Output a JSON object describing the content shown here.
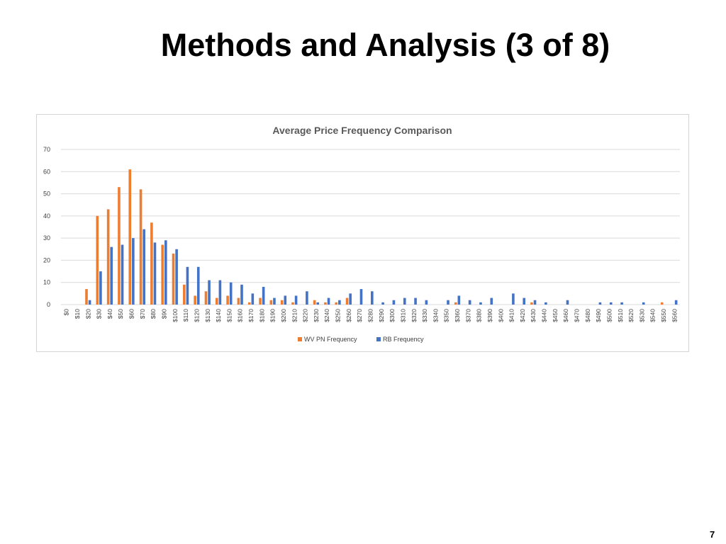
{
  "slide": {
    "title": "Methods and Analysis (3 of 8)",
    "page_number": "7"
  },
  "chart_data": {
    "type": "bar",
    "title": "Average Price Frequency Comparison",
    "xlabel": "",
    "ylabel": "",
    "ylim": [
      0,
      70
    ],
    "yticks": [
      0,
      10,
      20,
      30,
      40,
      50,
      60,
      70
    ],
    "grid": true,
    "legend_position": "bottom",
    "categories": [
      "$0",
      "$10",
      "$20",
      "$30",
      "$40",
      "$50",
      "$60",
      "$70",
      "$80",
      "$90",
      "$100",
      "$110",
      "$120",
      "$130",
      "$140",
      "$150",
      "$160",
      "$170",
      "$180",
      "$190",
      "$200",
      "$210",
      "$220",
      "$230",
      "$240",
      "$250",
      "$260",
      "$270",
      "$280",
      "$290",
      "$300",
      "$310",
      "$320",
      "$330",
      "$340",
      "$350",
      "$360",
      "$370",
      "$380",
      "$390",
      "$400",
      "$410",
      "$420",
      "$430",
      "$440",
      "$450",
      "$460",
      "$470",
      "$480",
      "$490",
      "$500",
      "$510",
      "$520",
      "$530",
      "$540",
      "$550",
      "$560"
    ],
    "series": [
      {
        "name": "WV PN Frequency",
        "color": "#ED7D31",
        "values": [
          0,
          0,
          7,
          40,
          43,
          53,
          61,
          52,
          37,
          27,
          23,
          9,
          4,
          6,
          3,
          4,
          3,
          1,
          3,
          2,
          2,
          1,
          0,
          2,
          1,
          1,
          3,
          0,
          0,
          0,
          0,
          0,
          0,
          0,
          0,
          0,
          1,
          0,
          0,
          0,
          0,
          0,
          0,
          1,
          0,
          0,
          0,
          0,
          0,
          0,
          0,
          0,
          0,
          0,
          0,
          1,
          0
        ]
      },
      {
        "name": "RB Frequency",
        "color": "#4472C4",
        "values": [
          0,
          0,
          2,
          15,
          26,
          27,
          30,
          34,
          28,
          29,
          25,
          17,
          17,
          11,
          11,
          10,
          9,
          5,
          8,
          3,
          4,
          4,
          6,
          1,
          3,
          2,
          5,
          7,
          6,
          1,
          2,
          3,
          3,
          2,
          0,
          2,
          4,
          2,
          1,
          3,
          0,
          5,
          3,
          2,
          1,
          0,
          2,
          0,
          0,
          1,
          1,
          1,
          0,
          1,
          0,
          0,
          2
        ]
      }
    ]
  }
}
